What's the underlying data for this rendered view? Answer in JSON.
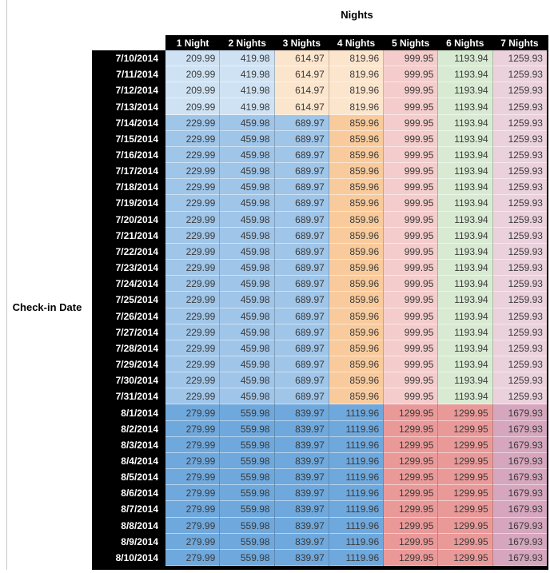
{
  "chart_data": {
    "type": "table",
    "title": "Nights",
    "row_axis_label": "Check-in Date",
    "columns": [
      "1 Night",
      "2 Nights",
      "3 Nights",
      "4 Nights",
      "5 Nights",
      "6 Nights",
      "7 Nights"
    ],
    "row_groups": [
      {
        "dates": [
          "7/10/2014",
          "7/11/2014",
          "7/12/2014",
          "7/13/2014"
        ],
        "values": [
          "209.99",
          "419.98",
          "614.97",
          "819.96",
          "999.95",
          "1193.94",
          "1259.93"
        ],
        "cell_colors": [
          "#cfe2f3",
          "#cfe2f3",
          "#fce5cd",
          "#fce5cd",
          "#f4cccc",
          "#d9ead3",
          "#ead1dc"
        ]
      },
      {
        "dates": [
          "7/14/2014",
          "7/15/2014",
          "7/16/2014",
          "7/17/2014",
          "7/18/2014",
          "7/19/2014",
          "7/20/2014",
          "7/21/2014",
          "7/22/2014",
          "7/23/2014",
          "7/24/2014",
          "7/25/2014",
          "7/26/2014",
          "7/27/2014",
          "7/28/2014",
          "7/29/2014",
          "7/30/2014",
          "7/31/2014"
        ],
        "values": [
          "229.99",
          "459.98",
          "689.97",
          "859.96",
          "999.95",
          "1193.94",
          "1259.93"
        ],
        "cell_colors": [
          "#9fc5e8",
          "#9fc5e8",
          "#9fc5e8",
          "#f9cb9c",
          "#f4cccc",
          "#d9ead3",
          "#ead1dc"
        ]
      },
      {
        "dates": [
          "8/1/2014",
          "8/2/2014",
          "8/3/2014",
          "8/4/2014",
          "8/5/2014",
          "8/6/2014",
          "8/7/2014",
          "8/8/2014",
          "8/9/2014",
          "8/10/2014"
        ],
        "values": [
          "279.99",
          "559.98",
          "839.97",
          "1119.96",
          "1299.95",
          "1299.95",
          "1679.93"
        ],
        "cell_colors": [
          "#6fa8dc",
          "#6fa8dc",
          "#6fa8dc",
          "#6fa8dc",
          "#ea9999",
          "#ea9999",
          "#d5a6bd"
        ]
      }
    ],
    "layout": {
      "header_bg": "#000000",
      "header_text": "#ffffff",
      "row_header_bg": "#000000",
      "row_header_text": "#ffffff",
      "cell_text": "#3a3a3a",
      "table_border": "#000000"
    }
  }
}
